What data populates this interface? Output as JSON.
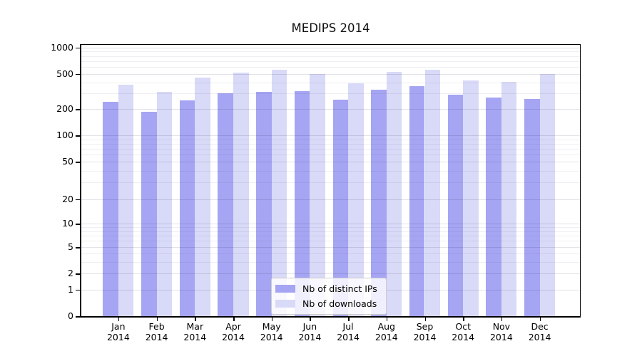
{
  "title": "MEDIPS 2014",
  "chart_data": {
    "type": "bar",
    "title": "MEDIPS 2014",
    "x_year": "2014",
    "categories": [
      "Jan",
      "Feb",
      "Mar",
      "Apr",
      "May",
      "Jun",
      "Jul",
      "Aug",
      "Sep",
      "Oct",
      "Nov",
      "Dec"
    ],
    "series": [
      {
        "name": "Nb of distinct IPs",
        "color": "#a5a5f3",
        "values": [
          240,
          186,
          252,
          298,
          313,
          318,
          254,
          332,
          362,
          292,
          271,
          258
        ]
      },
      {
        "name": "Nb of downloads",
        "color": "#d9d9f8",
        "values": [
          375,
          310,
          455,
          515,
          550,
          500,
          393,
          525,
          552,
          418,
          407,
          497
        ]
      }
    ],
    "y_axis": {
      "scale": "log-with-zero",
      "ticks": [
        0,
        1,
        2,
        5,
        10,
        20,
        50,
        100,
        200,
        500,
        1000
      ],
      "range": [
        0,
        1000
      ]
    },
    "x_axis_label": "",
    "y_axis_label": "",
    "legend": {
      "position": "inside-bottom-center",
      "entries": [
        "Nb of distinct IPs",
        "Nb of downloads"
      ]
    },
    "grid": true,
    "colors": {
      "axis": "#000000",
      "grid_major": "#e2e2e7",
      "grid_minor": "#efeff3",
      "background": "#ffffff"
    }
  }
}
